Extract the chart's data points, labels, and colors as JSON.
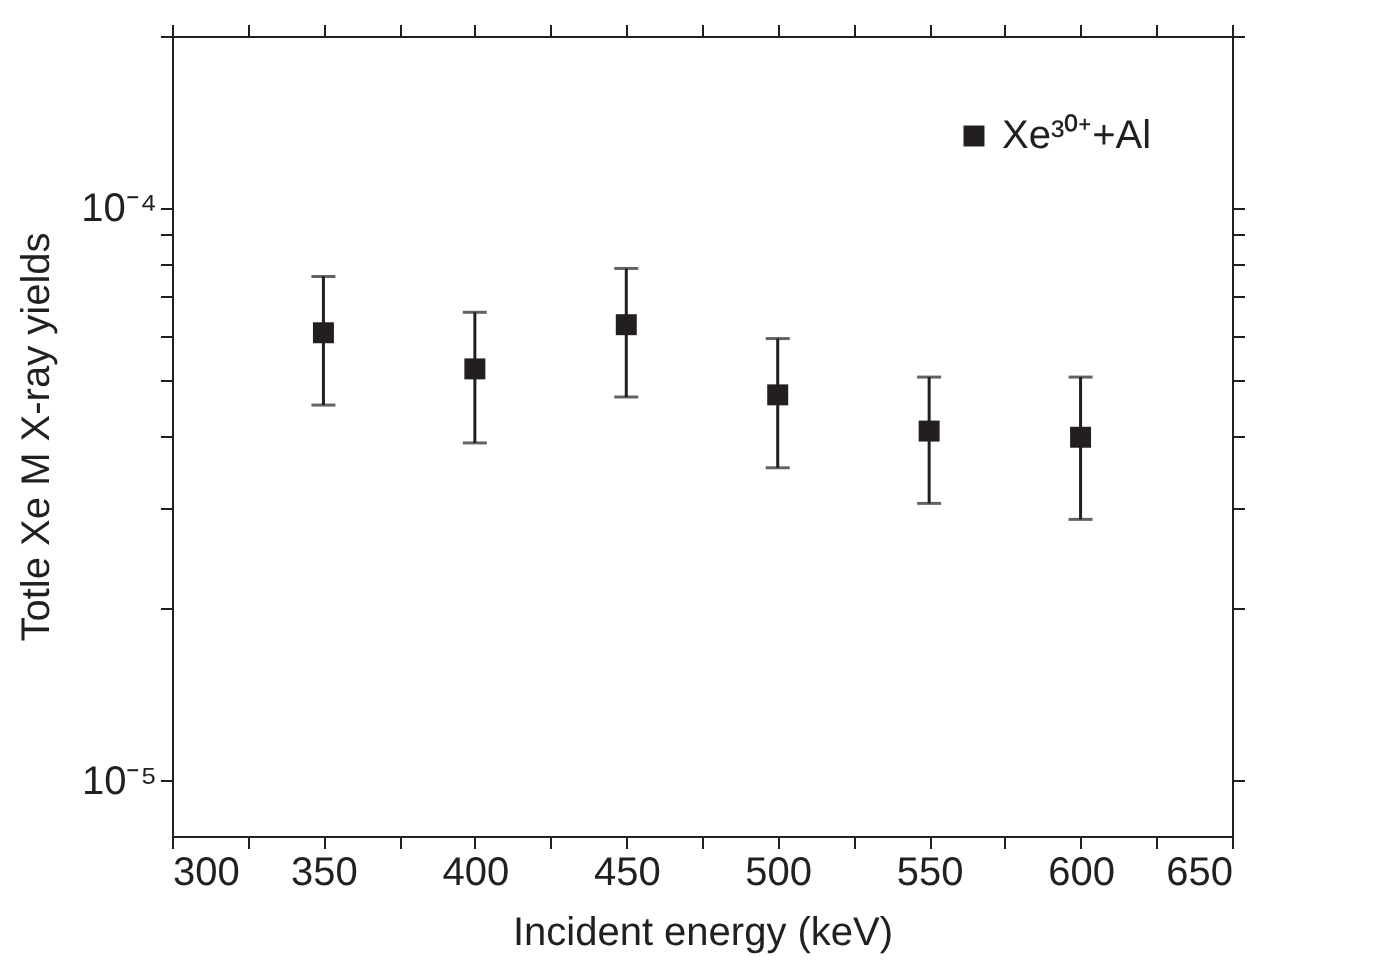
{
  "chart_data": {
    "type": "scatter",
    "xlabel": "Incident energy (keV)",
    "ylabel": "Totle Xe M X-ray yields",
    "x": [
      350,
      400,
      450,
      500,
      550,
      600
    ],
    "series": [
      {
        "name": "Xe³⁰⁺+Al",
        "color": "#231f20",
        "values": [
          6.06e-05,
          5.24e-05,
          6.26e-05,
          4.72e-05,
          4.08e-05,
          3.98e-05
        ],
        "errors": [
          [
            4.53e-05,
            7.6e-05
          ],
          [
            3.89e-05,
            6.58e-05
          ],
          [
            4.68e-05,
            7.85e-05
          ],
          [
            3.52e-05,
            5.92e-05
          ],
          [
            3.05e-05,
            5.07e-05
          ],
          [
            2.86e-05,
            5.07e-05
          ]
        ]
      }
    ],
    "log": "y",
    "xlim": [
      300,
      650
    ],
    "ylim": [
      8e-06,
      0.0002
    ],
    "xticks": [
      300,
      {
        "value": 325,
        "label": null
      },
      350,
      {
        "value": 375,
        "label": null
      },
      400,
      {
        "value": 425,
        "label": null
      },
      450,
      {
        "value": 475,
        "label": null
      },
      500,
      {
        "value": 525,
        "label": null
      },
      550,
      {
        "value": 575,
        "label": null
      },
      600,
      {
        "value": 625,
        "label": null
      },
      650
    ],
    "yticks": [
      {
        "value": 1e-05,
        "label": "10⁻⁵"
      },
      {
        "value": 2e-05,
        "label": null
      },
      {
        "value": 3e-05,
        "label": null
      },
      {
        "value": 4e-05,
        "label": null
      },
      {
        "value": 5e-05,
        "label": null
      },
      {
        "value": 6e-05,
        "label": null
      },
      {
        "value": 7e-05,
        "label": null
      },
      {
        "value": 8e-05,
        "label": null
      },
      {
        "value": 9e-05,
        "label": null
      },
      {
        "value": 0.0001,
        "label": "10⁻⁴"
      },
      {
        "value": 0.0002,
        "label": null
      }
    ],
    "marker": "square",
    "legend": "top right",
    "grid": false
  }
}
